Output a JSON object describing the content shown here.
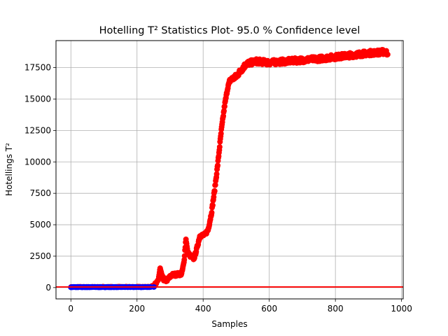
{
  "chart_data": {
    "type": "scatter",
    "title": "Hotelling T² Statistics Plot- 95.0 % Confidence level",
    "xlabel": "Samples",
    "ylabel": "Hotellings T²",
    "xlim": [
      -45,
      1005
    ],
    "ylim": [
      -900,
      19650
    ],
    "xticks": [
      0,
      200,
      400,
      600,
      800,
      1000
    ],
    "yticks": [
      0,
      2500,
      5000,
      7500,
      10000,
      12500,
      15000,
      17500
    ],
    "grid": true,
    "threshold": 50,
    "in_control_color": "#0000ff",
    "out_of_control_color": "#ff0000",
    "threshold_color": "#ff0000",
    "trend_points": [
      [
        0,
        20
      ],
      [
        240,
        30
      ],
      [
        250,
        150
      ],
      [
        260,
        350
      ],
      [
        265,
        700
      ],
      [
        270,
        1500
      ],
      [
        275,
        900
      ],
      [
        285,
        500
      ],
      [
        295,
        700
      ],
      [
        305,
        1000
      ],
      [
        320,
        1050
      ],
      [
        335,
        1100
      ],
      [
        342,
        2000
      ],
      [
        348,
        3900
      ],
      [
        353,
        2800
      ],
      [
        362,
        2500
      ],
      [
        372,
        2300
      ],
      [
        380,
        3000
      ],
      [
        390,
        4100
      ],
      [
        405,
        4200
      ],
      [
        415,
        4600
      ],
      [
        425,
        5900
      ],
      [
        435,
        7800
      ],
      [
        445,
        10000
      ],
      [
        455,
        12500
      ],
      [
        465,
        14500
      ],
      [
        475,
        16000
      ],
      [
        482,
        16500
      ],
      [
        500,
        16800
      ],
      [
        515,
        17300
      ],
      [
        530,
        17800
      ],
      [
        560,
        18000
      ],
      [
        600,
        17900
      ],
      [
        650,
        18000
      ],
      [
        700,
        18100
      ],
      [
        750,
        18200
      ],
      [
        800,
        18350
      ],
      [
        850,
        18500
      ],
      [
        900,
        18650
      ],
      [
        950,
        18750
      ],
      [
        958,
        18650
      ]
    ]
  }
}
